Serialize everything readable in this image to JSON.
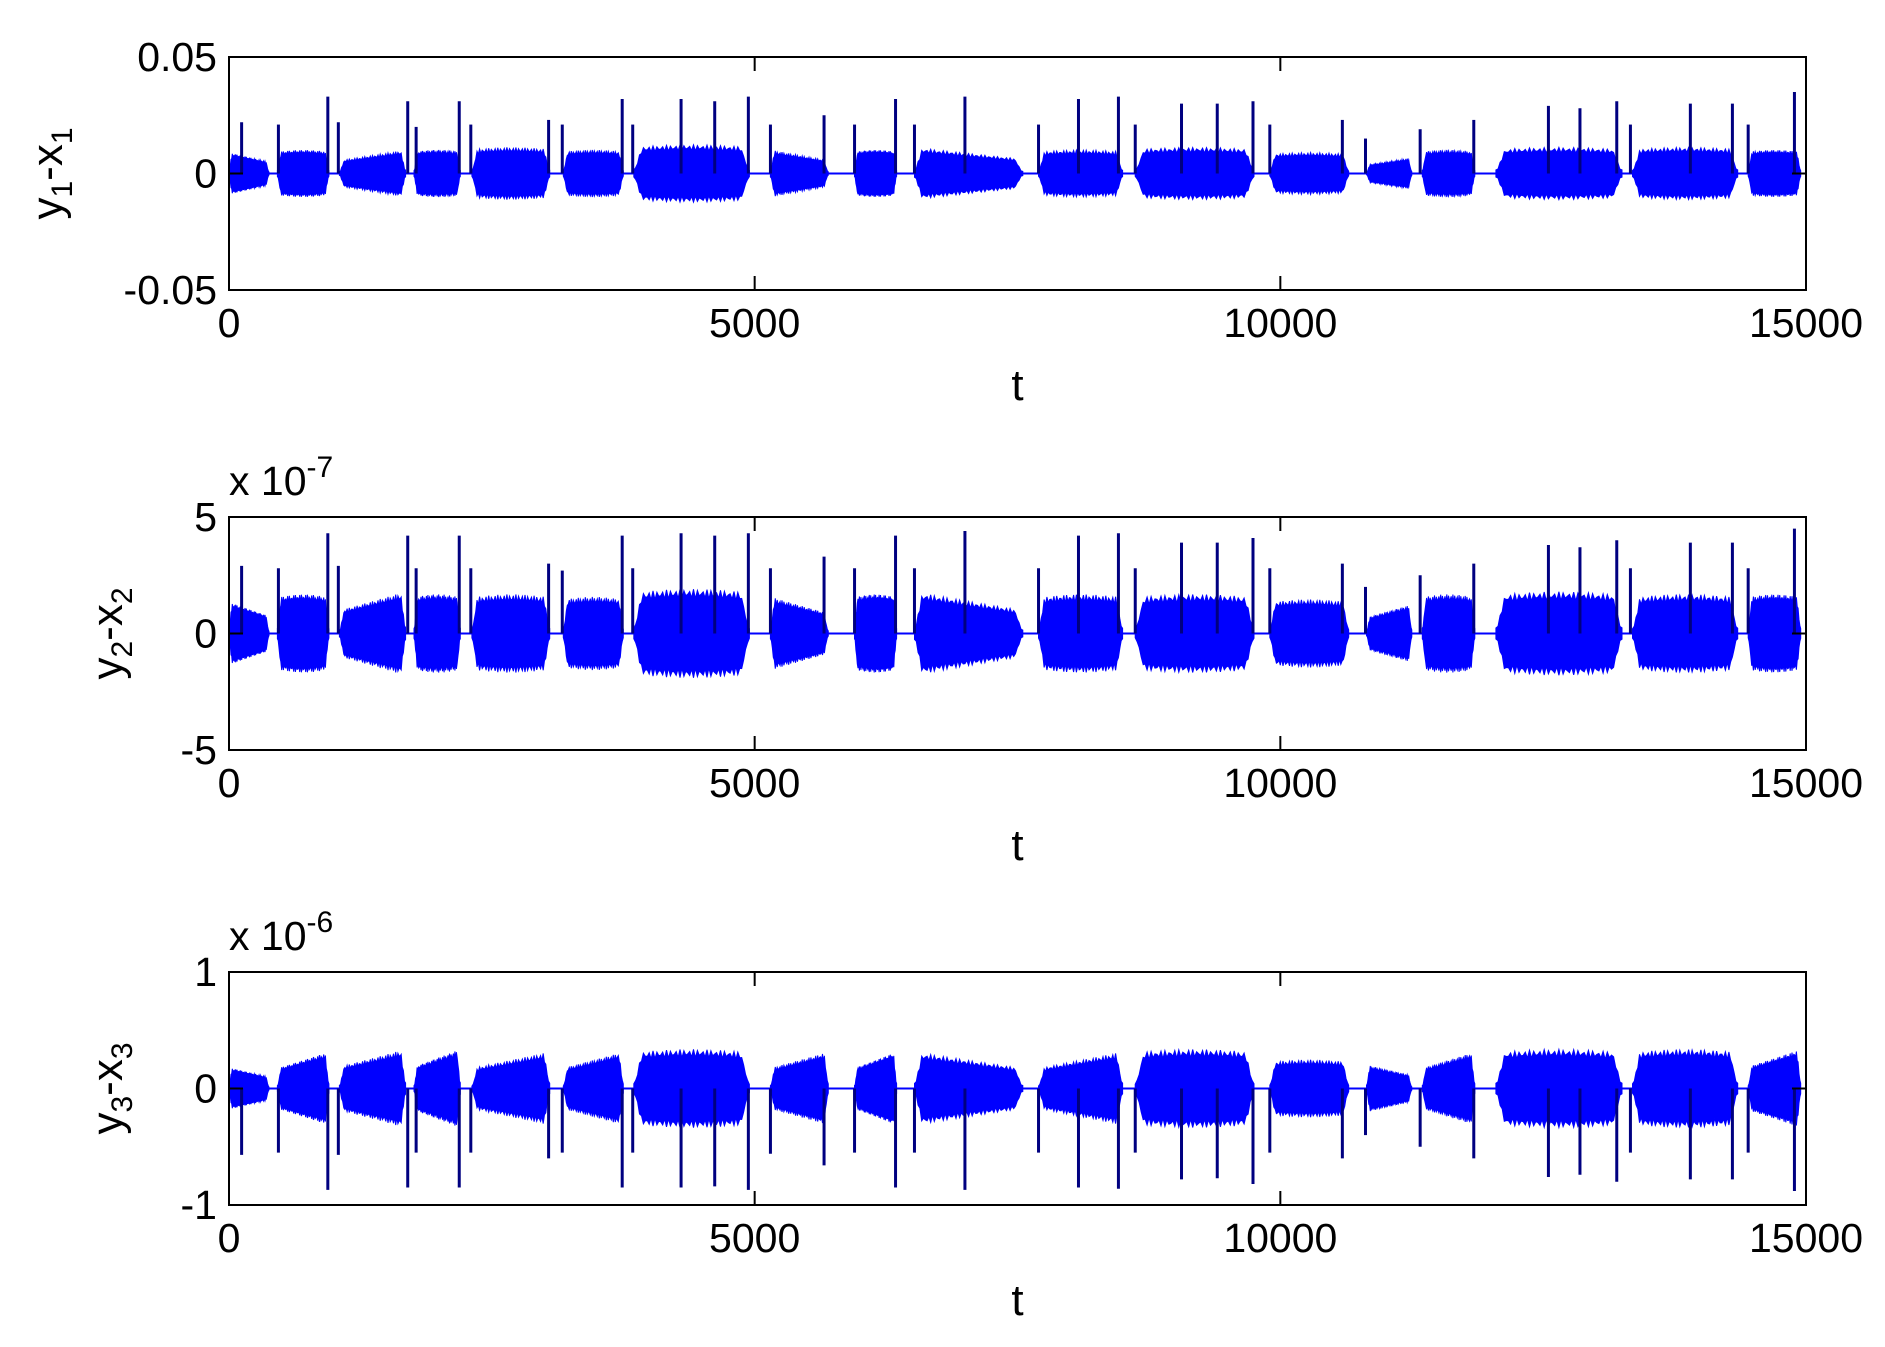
{
  "chart_data": [
    {
      "type": "line",
      "xlabel": "t",
      "ylabel": {
        "parts": [
          "y",
          "1",
          "-x",
          "1"
        ]
      },
      "xlim": [
        0,
        15000
      ],
      "ylim": [
        -0.05,
        0.05
      ],
      "xticks": [
        "0",
        "5000",
        "10000",
        "15000"
      ],
      "yticks": [
        "0.05",
        "0",
        "-0.05"
      ],
      "exponent": null,
      "color": "#0000ff",
      "spike_color": "#000080",
      "bursts": [
        {
          "start": 0,
          "end": 380,
          "amp": 0.008,
          "shape": "decay"
        },
        {
          "start": 460,
          "end": 950,
          "amp": 0.009,
          "shape": "flat"
        },
        {
          "start": 1050,
          "end": 1680,
          "amp": 0.009,
          "shape": "grow"
        },
        {
          "start": 1760,
          "end": 2200,
          "amp": 0.009,
          "shape": "flat"
        },
        {
          "start": 2310,
          "end": 3050,
          "amp": 0.01,
          "shape": "flat"
        },
        {
          "start": 3180,
          "end": 3750,
          "amp": 0.009,
          "shape": "flat"
        },
        {
          "start": 3850,
          "end": 4950,
          "amp": 0.011,
          "shape": "flat"
        },
        {
          "start": 5150,
          "end": 5700,
          "amp": 0.009,
          "shape": "decay"
        },
        {
          "start": 5950,
          "end": 6350,
          "amp": 0.009,
          "shape": "flat"
        },
        {
          "start": 6520,
          "end": 7550,
          "amp": 0.01,
          "shape": "decay"
        },
        {
          "start": 7700,
          "end": 8500,
          "amp": 0.009,
          "shape": "flat"
        },
        {
          "start": 8620,
          "end": 9750,
          "amp": 0.01,
          "shape": "flat"
        },
        {
          "start": 9900,
          "end": 10650,
          "amp": 0.008,
          "shape": "flat"
        },
        {
          "start": 10820,
          "end": 11250,
          "amp": 0.006,
          "shape": "grow"
        },
        {
          "start": 11350,
          "end": 11850,
          "amp": 0.009,
          "shape": "flat"
        },
        {
          "start": 12050,
          "end": 13250,
          "amp": 0.01,
          "shape": "flat"
        },
        {
          "start": 13350,
          "end": 14350,
          "amp": 0.01,
          "shape": "flat"
        },
        {
          "start": 14450,
          "end": 14950,
          "amp": 0.009,
          "shape": "flat"
        }
      ],
      "spikes": [
        {
          "t": 120,
          "value": 0.022
        },
        {
          "t": 470,
          "value": 0.021
        },
        {
          "t": 940,
          "value": 0.033
        },
        {
          "t": 1040,
          "value": 0.022
        },
        {
          "t": 1700,
          "value": 0.031
        },
        {
          "t": 1780,
          "value": 0.02
        },
        {
          "t": 2190,
          "value": 0.031
        },
        {
          "t": 2300,
          "value": 0.021
        },
        {
          "t": 3040,
          "value": 0.023
        },
        {
          "t": 3170,
          "value": 0.021
        },
        {
          "t": 3740,
          "value": 0.032
        },
        {
          "t": 3840,
          "value": 0.021
        },
        {
          "t": 4300,
          "value": 0.032
        },
        {
          "t": 4620,
          "value": 0.031
        },
        {
          "t": 4940,
          "value": 0.033
        },
        {
          "t": 5150,
          "value": 0.021
        },
        {
          "t": 5660,
          "value": 0.025
        },
        {
          "t": 5950,
          "value": 0.021
        },
        {
          "t": 6340,
          "value": 0.032
        },
        {
          "t": 6520,
          "value": 0.021
        },
        {
          "t": 7000,
          "value": 0.033
        },
        {
          "t": 7700,
          "value": 0.021
        },
        {
          "t": 8080,
          "value": 0.032
        },
        {
          "t": 8460,
          "value": 0.033
        },
        {
          "t": 8620,
          "value": 0.021
        },
        {
          "t": 9060,
          "value": 0.03
        },
        {
          "t": 9400,
          "value": 0.03
        },
        {
          "t": 9740,
          "value": 0.031
        },
        {
          "t": 9900,
          "value": 0.021
        },
        {
          "t": 10590,
          "value": 0.023
        },
        {
          "t": 10810,
          "value": 0.015
        },
        {
          "t": 11330,
          "value": 0.019
        },
        {
          "t": 11840,
          "value": 0.023
        },
        {
          "t": 12550,
          "value": 0.029
        },
        {
          "t": 12850,
          "value": 0.028
        },
        {
          "t": 13200,
          "value": 0.031
        },
        {
          "t": 13330,
          "value": 0.021
        },
        {
          "t": 13900,
          "value": 0.03
        },
        {
          "t": 14300,
          "value": 0.03
        },
        {
          "t": 14450,
          "value": 0.021
        },
        {
          "t": 14890,
          "value": 0.035
        }
      ]
    },
    {
      "type": "line",
      "xlabel": "t",
      "ylabel": {
        "parts": [
          "y",
          "2",
          "-x",
          "2"
        ]
      },
      "xlim": [
        0,
        15000
      ],
      "ylim": [
        -5,
        5
      ],
      "xticks": [
        "0",
        "5000",
        "10000",
        "15000"
      ],
      "yticks": [
        "5",
        "0",
        "-5"
      ],
      "exponent": {
        "base": "x 10",
        "power": "-7"
      },
      "color": "#0000ff",
      "spike_color": "#000080",
      "bursts": [
        {
          "start": 0,
          "end": 380,
          "amp": 1.2,
          "shape": "decay"
        },
        {
          "start": 460,
          "end": 950,
          "amp": 1.5,
          "shape": "flat"
        },
        {
          "start": 1050,
          "end": 1680,
          "amp": 1.6,
          "shape": "grow"
        },
        {
          "start": 1760,
          "end": 2200,
          "amp": 1.5,
          "shape": "flat"
        },
        {
          "start": 2310,
          "end": 3050,
          "amp": 1.5,
          "shape": "flat"
        },
        {
          "start": 3180,
          "end": 3750,
          "amp": 1.4,
          "shape": "flat"
        },
        {
          "start": 3850,
          "end": 4950,
          "amp": 1.7,
          "shape": "flat"
        },
        {
          "start": 5150,
          "end": 5700,
          "amp": 1.4,
          "shape": "decay"
        },
        {
          "start": 5950,
          "end": 6350,
          "amp": 1.5,
          "shape": "flat"
        },
        {
          "start": 6520,
          "end": 7550,
          "amp": 1.6,
          "shape": "decay"
        },
        {
          "start": 7700,
          "end": 8500,
          "amp": 1.5,
          "shape": "flat"
        },
        {
          "start": 8620,
          "end": 9750,
          "amp": 1.5,
          "shape": "flat"
        },
        {
          "start": 9900,
          "end": 10650,
          "amp": 1.3,
          "shape": "flat"
        },
        {
          "start": 10820,
          "end": 11250,
          "amp": 1.1,
          "shape": "grow"
        },
        {
          "start": 11350,
          "end": 11850,
          "amp": 1.5,
          "shape": "flat"
        },
        {
          "start": 12050,
          "end": 13250,
          "amp": 1.6,
          "shape": "flat"
        },
        {
          "start": 13350,
          "end": 14350,
          "amp": 1.5,
          "shape": "flat"
        },
        {
          "start": 14450,
          "end": 14950,
          "amp": 1.5,
          "shape": "flat"
        }
      ],
      "spikes": [
        {
          "t": 120,
          "value": 2.9
        },
        {
          "t": 470,
          "value": 2.8
        },
        {
          "t": 940,
          "value": 4.3
        },
        {
          "t": 1040,
          "value": 2.9
        },
        {
          "t": 1700,
          "value": 4.2
        },
        {
          "t": 1780,
          "value": 2.8
        },
        {
          "t": 2190,
          "value": 4.2
        },
        {
          "t": 2300,
          "value": 2.8
        },
        {
          "t": 3040,
          "value": 3.0
        },
        {
          "t": 3170,
          "value": 2.7
        },
        {
          "t": 3740,
          "value": 4.2
        },
        {
          "t": 3840,
          "value": 2.8
        },
        {
          "t": 4300,
          "value": 4.3
        },
        {
          "t": 4620,
          "value": 4.2
        },
        {
          "t": 4940,
          "value": 4.3
        },
        {
          "t": 5150,
          "value": 2.8
        },
        {
          "t": 5660,
          "value": 3.3
        },
        {
          "t": 5950,
          "value": 2.8
        },
        {
          "t": 6340,
          "value": 4.2
        },
        {
          "t": 6520,
          "value": 2.8
        },
        {
          "t": 7000,
          "value": 4.4
        },
        {
          "t": 7700,
          "value": 2.8
        },
        {
          "t": 8080,
          "value": 4.2
        },
        {
          "t": 8460,
          "value": 4.3
        },
        {
          "t": 8620,
          "value": 2.8
        },
        {
          "t": 9060,
          "value": 3.9
        },
        {
          "t": 9400,
          "value": 3.9
        },
        {
          "t": 9740,
          "value": 4.1
        },
        {
          "t": 9900,
          "value": 2.8
        },
        {
          "t": 10590,
          "value": 3.0
        },
        {
          "t": 10810,
          "value": 2.0
        },
        {
          "t": 11330,
          "value": 2.5
        },
        {
          "t": 11840,
          "value": 3.0
        },
        {
          "t": 12550,
          "value": 3.8
        },
        {
          "t": 12850,
          "value": 3.7
        },
        {
          "t": 13200,
          "value": 4.0
        },
        {
          "t": 13330,
          "value": 2.8
        },
        {
          "t": 13900,
          "value": 3.9
        },
        {
          "t": 14300,
          "value": 3.9
        },
        {
          "t": 14450,
          "value": 2.8
        },
        {
          "t": 14890,
          "value": 4.5
        }
      ]
    },
    {
      "type": "line",
      "xlabel": "t",
      "ylabel": {
        "parts": [
          "y",
          "3",
          "-x",
          "3"
        ]
      },
      "xlim": [
        0,
        15000
      ],
      "ylim": [
        -1,
        1
      ],
      "xticks": [
        "0",
        "5000",
        "10000",
        "15000"
      ],
      "yticks": [
        "1",
        "0",
        "-1"
      ],
      "exponent": {
        "base": "x 10",
        "power": "-6"
      },
      "color": "#0000ff",
      "spike_color": "#000080",
      "bursts": [
        {
          "start": 0,
          "end": 380,
          "amp": 0.16,
          "shape": "decay"
        },
        {
          "start": 460,
          "end": 950,
          "amp": 0.28,
          "shape": "grow"
        },
        {
          "start": 1050,
          "end": 1680,
          "amp": 0.3,
          "shape": "grow"
        },
        {
          "start": 1760,
          "end": 2200,
          "amp": 0.3,
          "shape": "grow"
        },
        {
          "start": 2310,
          "end": 3050,
          "amp": 0.28,
          "shape": "grow"
        },
        {
          "start": 3180,
          "end": 3750,
          "amp": 0.28,
          "shape": "grow"
        },
        {
          "start": 3850,
          "end": 4950,
          "amp": 0.3,
          "shape": "flat"
        },
        {
          "start": 5150,
          "end": 5700,
          "amp": 0.28,
          "shape": "grow"
        },
        {
          "start": 5950,
          "end": 6350,
          "amp": 0.28,
          "shape": "grow"
        },
        {
          "start": 6520,
          "end": 7550,
          "amp": 0.28,
          "shape": "decay"
        },
        {
          "start": 7700,
          "end": 8500,
          "amp": 0.28,
          "shape": "grow"
        },
        {
          "start": 8620,
          "end": 9750,
          "amp": 0.3,
          "shape": "flat"
        },
        {
          "start": 9900,
          "end": 10650,
          "amp": 0.22,
          "shape": "flat"
        },
        {
          "start": 10820,
          "end": 11250,
          "amp": 0.18,
          "shape": "decay"
        },
        {
          "start": 11350,
          "end": 11850,
          "amp": 0.28,
          "shape": "grow"
        },
        {
          "start": 12050,
          "end": 13250,
          "amp": 0.3,
          "shape": "flat"
        },
        {
          "start": 13350,
          "end": 14350,
          "amp": 0.3,
          "shape": "flat"
        },
        {
          "start": 14450,
          "end": 14950,
          "amp": 0.3,
          "shape": "grow"
        }
      ],
      "spikes": [
        {
          "t": 120,
          "value": -0.57
        },
        {
          "t": 470,
          "value": -0.55
        },
        {
          "t": 940,
          "value": -0.87
        },
        {
          "t": 1040,
          "value": -0.57
        },
        {
          "t": 1700,
          "value": -0.85
        },
        {
          "t": 1780,
          "value": -0.55
        },
        {
          "t": 2190,
          "value": -0.85
        },
        {
          "t": 2300,
          "value": -0.55
        },
        {
          "t": 3040,
          "value": -0.6
        },
        {
          "t": 3170,
          "value": -0.55
        },
        {
          "t": 3740,
          "value": -0.85
        },
        {
          "t": 3840,
          "value": -0.55
        },
        {
          "t": 4300,
          "value": -0.85
        },
        {
          "t": 4620,
          "value": -0.84
        },
        {
          "t": 4940,
          "value": -0.87
        },
        {
          "t": 5150,
          "value": -0.56
        },
        {
          "t": 5660,
          "value": -0.66
        },
        {
          "t": 5950,
          "value": -0.55
        },
        {
          "t": 6340,
          "value": -0.85
        },
        {
          "t": 6520,
          "value": -0.55
        },
        {
          "t": 7000,
          "value": -0.87
        },
        {
          "t": 7700,
          "value": -0.55
        },
        {
          "t": 8080,
          "value": -0.85
        },
        {
          "t": 8460,
          "value": -0.86
        },
        {
          "t": 8620,
          "value": -0.55
        },
        {
          "t": 9060,
          "value": -0.78
        },
        {
          "t": 9400,
          "value": -0.77
        },
        {
          "t": 9740,
          "value": -0.82
        },
        {
          "t": 9900,
          "value": -0.55
        },
        {
          "t": 10590,
          "value": -0.6
        },
        {
          "t": 10810,
          "value": -0.4
        },
        {
          "t": 11330,
          "value": -0.5
        },
        {
          "t": 11840,
          "value": -0.6
        },
        {
          "t": 12550,
          "value": -0.76
        },
        {
          "t": 12850,
          "value": -0.74
        },
        {
          "t": 13200,
          "value": -0.8
        },
        {
          "t": 13330,
          "value": -0.55
        },
        {
          "t": 13900,
          "value": -0.78
        },
        {
          "t": 14300,
          "value": -0.78
        },
        {
          "t": 14450,
          "value": -0.55
        },
        {
          "t": 14890,
          "value": -0.88
        }
      ]
    }
  ]
}
